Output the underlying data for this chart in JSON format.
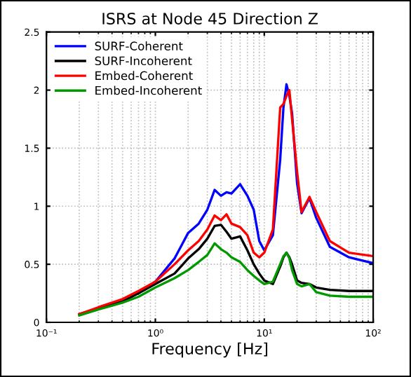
{
  "chart_data": {
    "type": "line",
    "title": "ISRS at Node 45 Direction Z",
    "xlabel": "Frequency [Hz]",
    "log": "x",
    "grid": true,
    "legend": "top left",
    "line_style": "solid",
    "marker": "none",
    "x": [
      0.2,
      0.3,
      0.5,
      0.7,
      1,
      1.5,
      2,
      2.5,
      3,
      3.5,
      4,
      4.5,
      5,
      6,
      7,
      8,
      9,
      10,
      12,
      14,
      15,
      16,
      17,
      18,
      20,
      22,
      26,
      30,
      40,
      60,
      100
    ],
    "series": [
      {
        "name": "SURF-Coherent",
        "color": "#0000ff",
        "values": [
          null,
          null,
          null,
          0.25,
          0.35,
          0.55,
          0.77,
          0.85,
          0.97,
          1.14,
          1.09,
          1.12,
          1.11,
          1.19,
          1.09,
          0.97,
          0.7,
          0.62,
          0.75,
          1.4,
          1.85,
          2.05,
          1.95,
          1.8,
          1.2,
          0.94,
          1.07,
          0.9,
          0.65,
          0.56,
          0.51
        ]
      },
      {
        "name": "SURF-Incoherent",
        "color": "#000000",
        "values": [
          0.07,
          0.12,
          0.18,
          0.25,
          0.33,
          0.42,
          0.55,
          0.63,
          0.72,
          0.83,
          0.84,
          0.78,
          0.72,
          0.74,
          0.62,
          0.5,
          0.42,
          0.36,
          0.33,
          0.48,
          0.56,
          0.6,
          0.56,
          0.5,
          0.36,
          0.34,
          0.33,
          0.3,
          0.28,
          0.27,
          0.27
        ]
      },
      {
        "name": "Embed-Coherent",
        "color": "#ff0000",
        "values": [
          0.07,
          0.13,
          0.2,
          0.27,
          0.35,
          0.5,
          0.62,
          0.7,
          0.8,
          0.92,
          0.88,
          0.93,
          0.85,
          0.82,
          0.75,
          0.6,
          0.56,
          0.6,
          0.8,
          1.85,
          1.88,
          1.95,
          2.0,
          1.75,
          1.3,
          0.95,
          1.08,
          0.95,
          0.7,
          0.6,
          0.57
        ]
      },
      {
        "name": "Embed-Incoherent",
        "color": "#009900",
        "values": [
          0.06,
          0.11,
          0.17,
          0.22,
          0.3,
          0.38,
          0.45,
          0.52,
          0.58,
          0.68,
          0.63,
          0.6,
          0.56,
          0.52,
          0.45,
          0.4,
          0.36,
          0.33,
          0.35,
          0.5,
          0.57,
          0.6,
          0.55,
          0.45,
          0.33,
          0.31,
          0.33,
          0.26,
          0.23,
          0.22,
          0.22
        ]
      }
    ],
    "xlim": [
      0.1,
      100
    ],
    "xticks": [
      {
        "value": 0.1,
        "label": "10⁻¹"
      },
      {
        "value": 1,
        "label": "10⁰"
      },
      {
        "value": 10,
        "label": "10¹"
      },
      {
        "value": 100,
        "label": "10²"
      }
    ],
    "ylim": [
      0,
      2.5
    ],
    "yticks": [
      0,
      0.5,
      1,
      1.5,
      2,
      2.5
    ]
  }
}
